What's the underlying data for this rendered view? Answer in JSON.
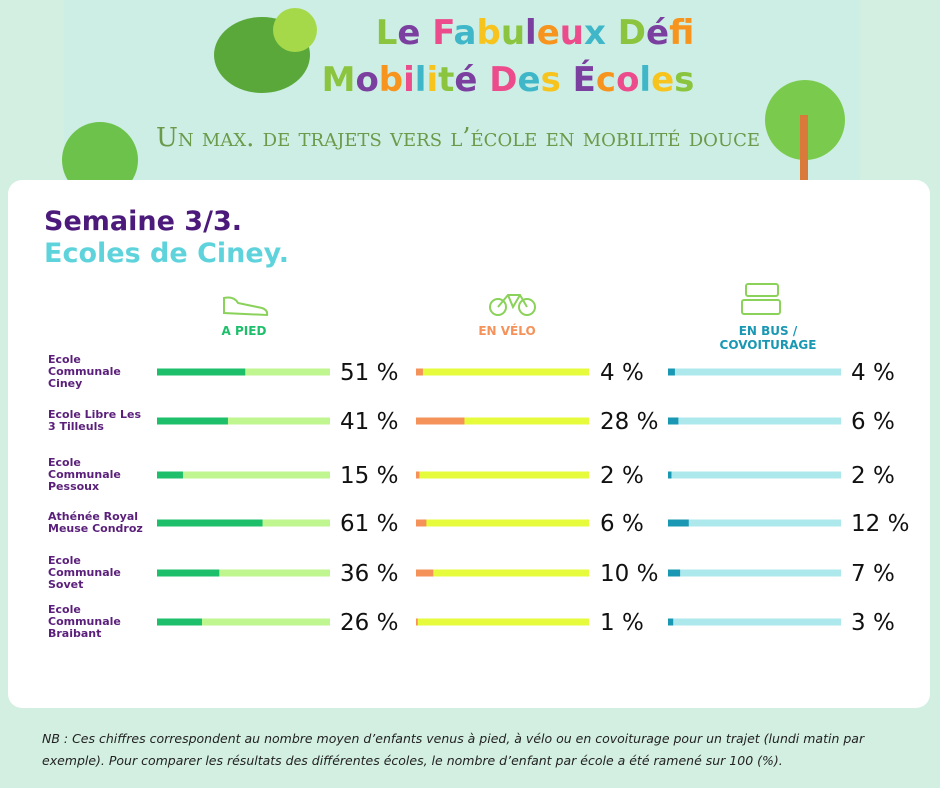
{
  "header": {
    "title_line1": "Le Fabuleux Défi",
    "title_line2": "Mobilité Des Écoles",
    "subtitle": "Un max. de trajets vers l’école en mobilité douce"
  },
  "chart_data": {
    "type": "progress",
    "title": "Semaine 3/3.",
    "subtitle": "Ecoles de Ciney.",
    "categories": [
      "Ecole Communale Ciney",
      "Ecole Libre Les 3 Tilleuls",
      "Ecole Communale Pessoux",
      "Athénée Royal Meuse Condroz",
      "Ecole Communale Sovet",
      "Ecole Communale Braibant"
    ],
    "xlim": [
      0,
      100
    ],
    "series": [
      {
        "name": "A PIED",
        "color": "#1dbf6b",
        "track_color": "#bff68f",
        "values": [
          51,
          41,
          15,
          61,
          36,
          26
        ],
        "value_labels": [
          "51 %",
          "41 %",
          "15 %",
          "61 %",
          "36 %",
          "26 %"
        ]
      },
      {
        "name": "EN VÉLO",
        "color": "#f4925a",
        "track_color": "#e6fb3c",
        "values": [
          4,
          28,
          2,
          6,
          10,
          1
        ],
        "value_labels": [
          "4 %",
          "28 %",
          "2 %",
          "6 %",
          "10 %",
          "1 %"
        ]
      },
      {
        "name": "EN BUS / COVOITURAGE",
        "color": "#1a98b3",
        "track_color": "#ade8ec",
        "values": [
          4,
          6,
          2,
          12,
          7,
          3
        ],
        "value_labels": [
          "4 %",
          "6 %",
          "2 %",
          "12 %",
          "7 %",
          "3 %"
        ]
      }
    ]
  },
  "note": "NB : Ces chiffres correspondent au nombre moyen d’enfants venus à pied, à vélo ou en covoiturage pour un trajet (lundi matin par exemple). Pour comparer les résultats des différentes écoles, le nombre d’enfant par école a été ramené sur 100 (%)."
}
